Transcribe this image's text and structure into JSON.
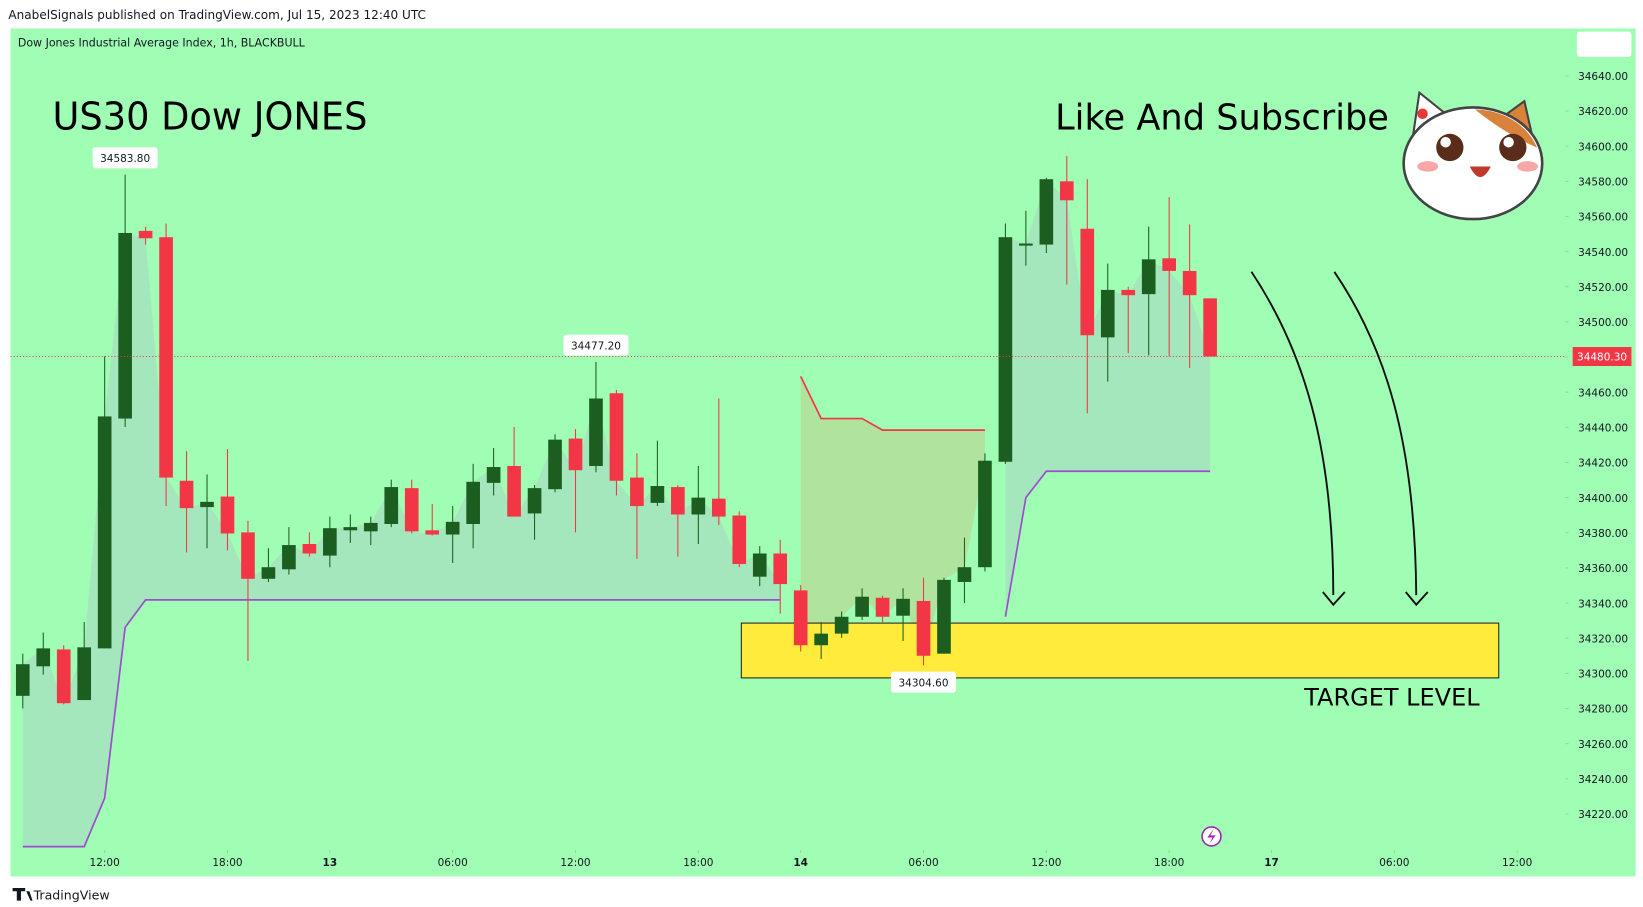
{
  "header": "AnabelSignals published on TradingView.com, Jul 15, 2023 12:40 UTC",
  "footer": "TradingView",
  "chart_data": {
    "type": "candlestick",
    "symbol": "Dow Jones Industrial Average Index, 1h, BLACKBULL",
    "title": "US30 Dow JONES",
    "subtitle": "Like And Subscribe",
    "up_color": "#1b5e20",
    "down_color": "#f23645",
    "grid": false,
    "xlim": [
      -0.6,
      75.3
    ],
    "ylim": [
      34200,
      34667
    ],
    "xticks": [
      {
        "value": 4,
        "label": "12:00"
      },
      {
        "value": 10,
        "label": "18:00"
      },
      {
        "value": 15,
        "label": "13"
      },
      {
        "value": 21,
        "label": "06:00"
      },
      {
        "value": 27,
        "label": "12:00"
      },
      {
        "value": 33,
        "label": "18:00"
      },
      {
        "value": 38,
        "label": "14"
      },
      {
        "value": 44,
        "label": "06:00"
      },
      {
        "value": 50,
        "label": "12:00"
      },
      {
        "value": 56,
        "label": "18:00"
      },
      {
        "value": 61,
        "label": "17"
      },
      {
        "value": 67,
        "label": "06:00"
      },
      {
        "value": 73,
        "label": "12:00"
      }
    ],
    "yticks": [
      {
        "value": 34220,
        "label": "34220.00"
      },
      {
        "value": 34240,
        "label": "34240.00"
      },
      {
        "value": 34260,
        "label": "34260.00"
      },
      {
        "value": 34280,
        "label": "34280.00"
      },
      {
        "value": 34300,
        "label": "34300.00"
      },
      {
        "value": 34320,
        "label": "34320.00"
      },
      {
        "value": 34340,
        "label": "34340.00"
      },
      {
        "value": 34360,
        "label": "34360.00"
      },
      {
        "value": 34380,
        "label": "34380.00"
      },
      {
        "value": 34400,
        "label": "34400.00"
      },
      {
        "value": 34420,
        "label": "34420.00"
      },
      {
        "value": 34440,
        "label": "34440.00"
      },
      {
        "value": 34460,
        "label": "34460.00"
      },
      {
        "value": 34480,
        "label": "34480.00"
      },
      {
        "value": 34500,
        "label": "34500.00"
      },
      {
        "value": 34520,
        "label": "34520.00"
      },
      {
        "value": 34540,
        "label": "34540.00"
      },
      {
        "value": 34560,
        "label": "34560.00"
      },
      {
        "value": 34580,
        "label": "34580.00"
      },
      {
        "value": 34600,
        "label": "34600.00"
      },
      {
        "value": 34620,
        "label": "34620.00"
      },
      {
        "value": 34640,
        "label": "34640.00"
      }
    ],
    "open": [
      34287.2,
      34304.0,
      34313.6,
      34284.8,
      34314.2,
      34445.0,
      34551.8,
      34548.2,
      34409.6,
      34394.6,
      34400.6,
      34380.2,
      34353.8,
      34359.2,
      34373.6,
      34367.0,
      34381.4,
      34380.8,
      34385.0,
      34405.4,
      34381.4,
      34379.0,
      34385.0,
      34408.4,
      34418.0,
      34391.0,
      34404.8,
      34433.6,
      34418.0,
      34459.4,
      34411.4,
      34397.0,
      34406.0,
      34390.4,
      34399.4,
      34389.8,
      34355.0,
      34368.2,
      34347.2,
      34316.0,
      34322.6,
      34332.2,
      34343.0,
      34332.8,
      34341.2,
      34311.2,
      34352.0,
      34360.4,
      34420.4,
      34543.4,
      34544.0,
      34580.0,
      34553.0,
      34491.2,
      34518.2,
      34515.8,
      34536.2,
      34529.0,
      34513.4
    ],
    "high": [
      34311.2,
      34323.2,
      34316.0,
      34329.2,
      34480.4,
      34583.8,
      34554.2,
      34556.0,
      34426.4,
      34413.2,
      34427.6,
      34386.8,
      34371.2,
      34383.2,
      34380.2,
      34389.2,
      34390.4,
      34389.2,
      34410.2,
      34410.2,
      34396.4,
      34395.2,
      34419.2,
      34428.2,
      34440.2,
      34407.2,
      34436.0,
      34439.0,
      34477.2,
      34461.2,
      34425.2,
      34432.4,
      34407.2,
      34418.0,
      34456.4,
      34392.2,
      34372.4,
      34376.0,
      34350.2,
      34329.2,
      34335.2,
      34348.4,
      34344.2,
      34348.4,
      34354.4,
      34354.4,
      34377.2,
      34425.2,
      34556.0,
      34563.2,
      34582.0,
      34594.4,
      34581.2,
      34533.2,
      34520.0,
      34554.2,
      34571.0,
      34555.4,
      34513.4
    ],
    "low": [
      34280.0,
      34299.2,
      34282.4,
      34284.8,
      34314.2,
      34440.2,
      34544.0,
      34395.2,
      34368.8,
      34371.2,
      34370.0,
      34307.0,
      34352.0,
      34356.2,
      34366.4,
      34360.4,
      34374.2,
      34373.0,
      34383.2,
      34379.6,
      34378.4,
      34362.8,
      34371.2,
      34401.2,
      34389.2,
      34376.0,
      34403.0,
      34380.2,
      34414.4,
      34401.2,
      34365.2,
      34395.2,
      34366.4,
      34373.6,
      34384.4,
      34360.4,
      34349.6,
      34334.0,
      34312.4,
      34308.2,
      34320.2,
      34330.4,
      34329.2,
      34318.4,
      34304.6,
      34311.2,
      34340.0,
      34358.0,
      34419.2,
      34532.0,
      34539.2,
      34521.2,
      34448.0,
      34466.0,
      34482.2,
      34481.0,
      34480.4,
      34473.8,
      34480.3
    ],
    "close": [
      34305.2,
      34314.2,
      34283.0,
      34314.8,
      34446.2,
      34550.6,
      34547.6,
      34411.4,
      34394.0,
      34397.6,
      34379.6,
      34353.8,
      34360.4,
      34373.0,
      34368.2,
      34382.6,
      34383.2,
      34385.6,
      34406.0,
      34380.8,
      34379.0,
      34386.2,
      34409.0,
      34417.4,
      34389.2,
      34405.4,
      34433.0,
      34415.6,
      34456.4,
      34409.6,
      34395.2,
      34406.6,
      34390.4,
      34400.0,
      34389.2,
      34362.2,
      34368.2,
      34350.8,
      34316.0,
      34322.6,
      34332.2,
      34343.6,
      34332.2,
      34342.4,
      34310.0,
      34353.2,
      34360.4,
      34421.0,
      34548.2,
      34544.6,
      34581.2,
      34569.2,
      34492.4,
      34518.2,
      34515.2,
      34535.6,
      34529.0,
      34515.2,
      34480.3
    ],
    "lines": [
      {
        "color": "#9c4dcc",
        "values": [
          34201.4,
          34201.4,
          34201.4,
          34201.4,
          34229.0,
          34326.2,
          34341.8,
          34341.8,
          34341.8,
          34341.8,
          34341.8,
          34341.8,
          34341.8,
          34341.8,
          34341.8,
          34341.8,
          34341.8,
          34341.8,
          34341.8,
          34341.8,
          34341.8,
          34341.8,
          34341.8,
          34341.8,
          34341.8,
          34341.8,
          34341.8,
          34341.8,
          34341.8,
          34341.8,
          34341.8,
          34341.8,
          34341.8,
          34341.8,
          34341.8,
          34341.8,
          34341.8,
          34341.8,
          null,
          null,
          null,
          null,
          null,
          null,
          null,
          null,
          null,
          null,
          34332.2,
          34400.0,
          34415.0,
          34415.0,
          34415.0,
          34415.0,
          34415.0,
          34415.0,
          34415.0,
          34415.0,
          34415.0
        ]
      },
      {
        "color": "#f23645",
        "values": [
          null,
          null,
          null,
          null,
          null,
          null,
          null,
          null,
          null,
          null,
          null,
          null,
          null,
          null,
          null,
          null,
          null,
          null,
          null,
          null,
          null,
          null,
          null,
          null,
          null,
          null,
          null,
          null,
          null,
          null,
          null,
          null,
          null,
          null,
          null,
          null,
          null,
          null,
          34469.0,
          34445.0,
          34445.0,
          34445.0,
          34438.4,
          34438.4,
          34438.4,
          34438.4,
          34438.4,
          34438.4,
          null,
          null,
          null,
          null,
          null,
          null,
          null,
          null,
          null,
          null,
          null
        ]
      }
    ],
    "price_labels": [
      {
        "value": 34583.8,
        "label": "34583.80"
      },
      {
        "value": 34477.2,
        "label": "34477.20"
      },
      {
        "value": 34304.6,
        "label": "34304.60"
      }
    ],
    "last_price": {
      "value": 34480.3,
      "label": "34480.30",
      "color": "#f23645"
    },
    "target_zone": {
      "label": "TARGET LEVEL",
      "top": 34328.6,
      "bottom": 34297.4,
      "color": "#ffeb3b"
    }
  }
}
